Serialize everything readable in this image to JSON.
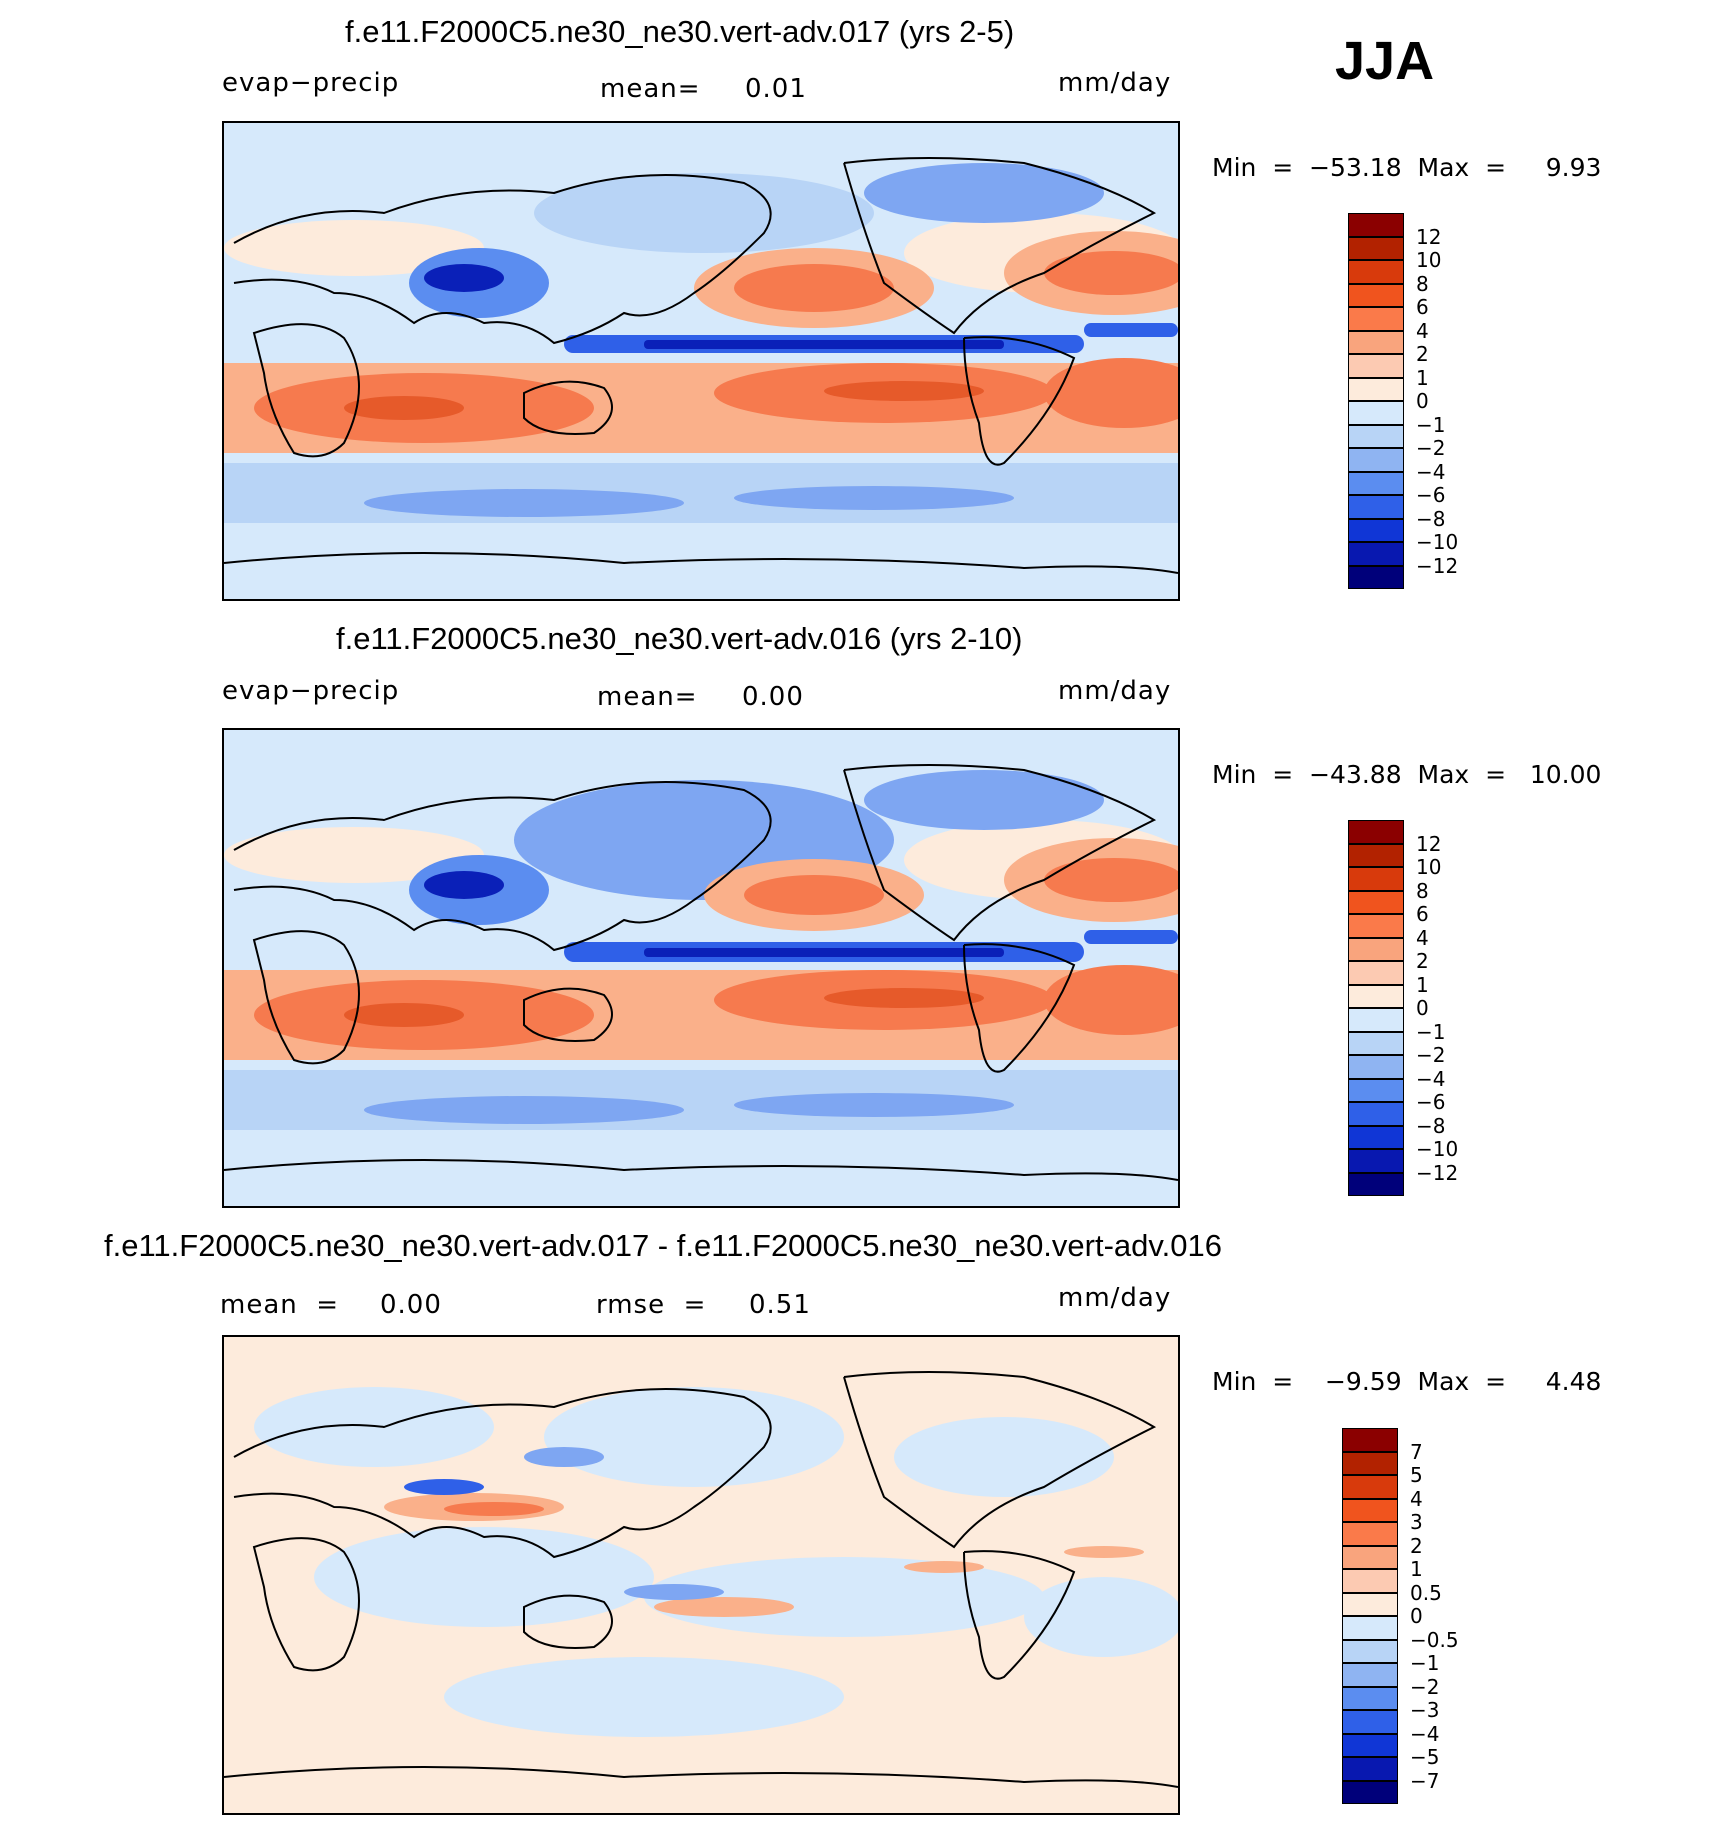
{
  "season": "JJA",
  "panels": [
    {
      "title": "f.e11.F2000C5.ne30_ne30.vert-adv.017 (yrs 2-5)",
      "left_label": "evap−precip",
      "center_label": "mean=",
      "center_value": "0.01",
      "units": "mm/day",
      "minmax": "Min  =  −53.18  Max  =     9.93",
      "colorbar_labels": [
        "12",
        "10",
        "8",
        "6",
        "4",
        "2",
        "1",
        "0",
        "−1",
        "−2",
        "−4",
        "−6",
        "−8",
        "−10",
        "−12"
      ]
    },
    {
      "title": "f.e11.F2000C5.ne30_ne30.vert-adv.016 (yrs 2-10)",
      "left_label": "evap−precip",
      "center_label": "mean=",
      "center_value": "0.00",
      "units": "mm/day",
      "minmax": "Min  =  −43.88  Max  =   10.00",
      "colorbar_labels": [
        "12",
        "10",
        "8",
        "6",
        "4",
        "2",
        "1",
        "0",
        "−1",
        "−2",
        "−4",
        "−6",
        "−8",
        "−10",
        "−12"
      ]
    },
    {
      "title": "f.e11.F2000C5.ne30_ne30.vert-adv.017 - f.e11.F2000C5.ne30_ne30.vert-adv.016",
      "left_label": "mean  =",
      "left_value": "0.00",
      "center_label": "rmse  =",
      "center_value": "0.51",
      "units": "mm/day",
      "minmax": "Min  =    −9.59  Max  =     4.48",
      "colorbar_labels": [
        "7",
        "5",
        "4",
        "3",
        "2",
        "1",
        "0.5",
        "0",
        "−0.5",
        "−1",
        "−2",
        "−3",
        "−4",
        "−5",
        "−7"
      ]
    }
  ],
  "colorbar_colors": [
    "#8b0000",
    "#b22200",
    "#d83a0c",
    "#f0541e",
    "#fa7a4a",
    "#f9a47d",
    "#fccab2",
    "#fdebdc",
    "#d6e9fb",
    "#b8d4f6",
    "#8fb4f2",
    "#5b8df0",
    "#2f60e8",
    "#1036d6",
    "#0818b0",
    "#00007a"
  ],
  "map_colors": {
    "ocean_base": "#d6e9fb",
    "light_blue": "#b8d4f6",
    "mid_blue": "#7ea6f2",
    "strong_blue": "#2f60e8",
    "deep_blue": "#0a20b8",
    "light_red": "#fdebdc",
    "mid_red": "#fab08a",
    "strong_red": "#f67a4e",
    "deep_red": "#e65a2a",
    "coast": "#000000"
  }
}
